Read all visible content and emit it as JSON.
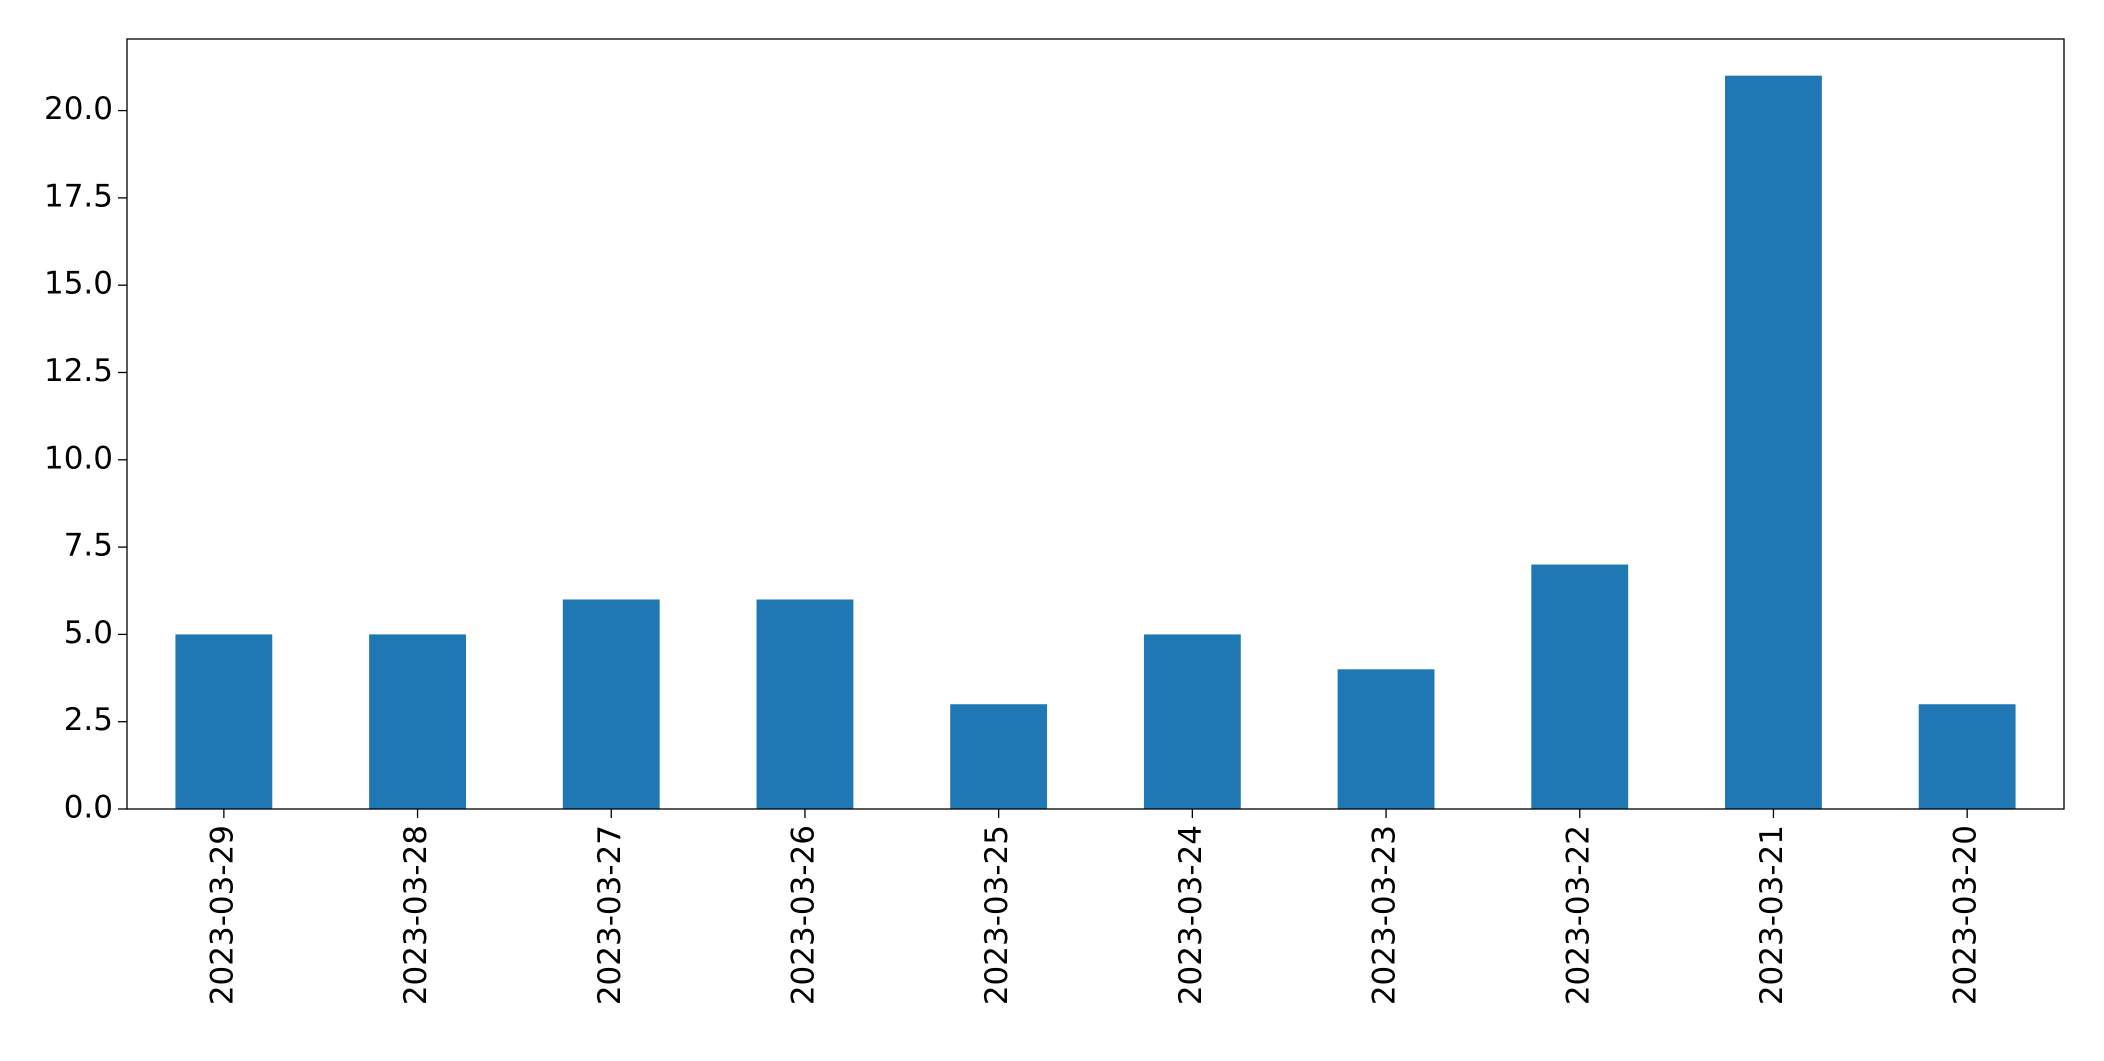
{
  "chart_data": {
    "type": "bar",
    "categories": [
      "2023-03-29",
      "2023-03-28",
      "2023-03-27",
      "2023-03-26",
      "2023-03-25",
      "2023-03-24",
      "2023-03-23",
      "2023-03-22",
      "2023-03-21",
      "2023-03-20"
    ],
    "values": [
      5,
      5,
      6,
      6,
      3,
      5,
      4,
      7,
      21,
      3
    ],
    "color": "#1f77b4",
    "ylim": [
      0,
      22.05
    ],
    "yticks": [
      {
        "value": 0,
        "label": "0.0"
      },
      2.5,
      {
        "value": 5,
        "label": "5.0"
      },
      7.5,
      {
        "value": 10,
        "label": "10.0"
      },
      12.5,
      {
        "value": 15,
        "label": "15.0"
      },
      17.5,
      {
        "value": 20,
        "label": "20.0"
      }
    ],
    "grid": false
  }
}
